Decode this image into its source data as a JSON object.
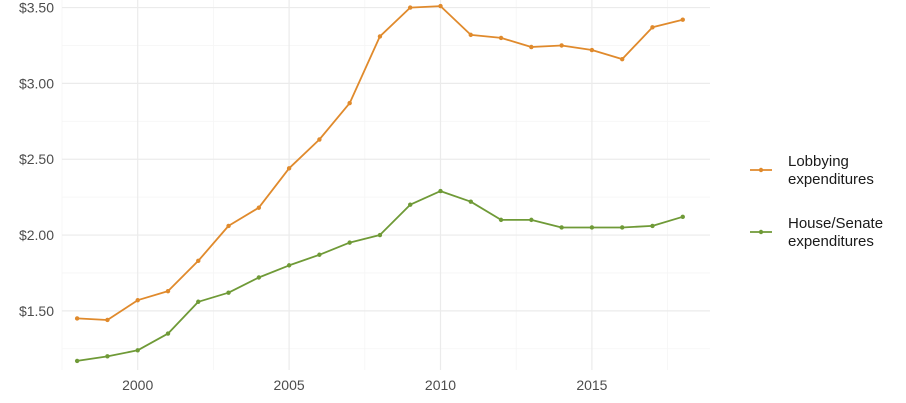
{
  "chart_data": {
    "type": "line",
    "title": "",
    "xlabel": "",
    "ylabel": "",
    "x": [
      1998,
      1999,
      2000,
      2001,
      2002,
      2003,
      2004,
      2005,
      2006,
      2007,
      2008,
      2009,
      2010,
      2011,
      2012,
      2013,
      2014,
      2015,
      2016,
      2017,
      2018
    ],
    "xlim": [
      1997.5,
      2018.9
    ],
    "ylim": [
      1.11,
      3.55
    ],
    "x_ticks": [
      2000,
      2005,
      2010,
      2015
    ],
    "x_tick_labels": [
      "2000",
      "2005",
      "2010",
      "2015"
    ],
    "y_ticks": [
      1.5,
      2.0,
      2.5,
      3.0,
      3.5
    ],
    "y_tick_labels": [
      "$1.50",
      "$2.00",
      "$2.50",
      "$3.00",
      "$3.50"
    ],
    "grid": true,
    "legend_position": "right",
    "series": [
      {
        "name": "Lobbying expenditures",
        "label_lines": [
          "Lobbying",
          "expenditures"
        ],
        "color": "#e08a2c",
        "values": [
          1.45,
          1.44,
          1.57,
          1.63,
          1.83,
          2.06,
          2.18,
          2.44,
          2.63,
          2.87,
          3.31,
          3.5,
          3.51,
          3.32,
          3.3,
          3.24,
          3.25,
          3.22,
          3.16,
          3.37,
          3.42
        ]
      },
      {
        "name": "House/Senate expenditures",
        "label_lines": [
          "House/Senate",
          "expenditures"
        ],
        "color": "#6f9a37",
        "values": [
          1.17,
          1.2,
          1.24,
          1.35,
          1.56,
          1.62,
          1.72,
          1.8,
          1.87,
          1.95,
          2.0,
          2.2,
          2.29,
          2.22,
          2.1,
          2.1,
          2.05,
          2.05,
          2.05,
          2.06,
          2.12
        ]
      }
    ]
  }
}
